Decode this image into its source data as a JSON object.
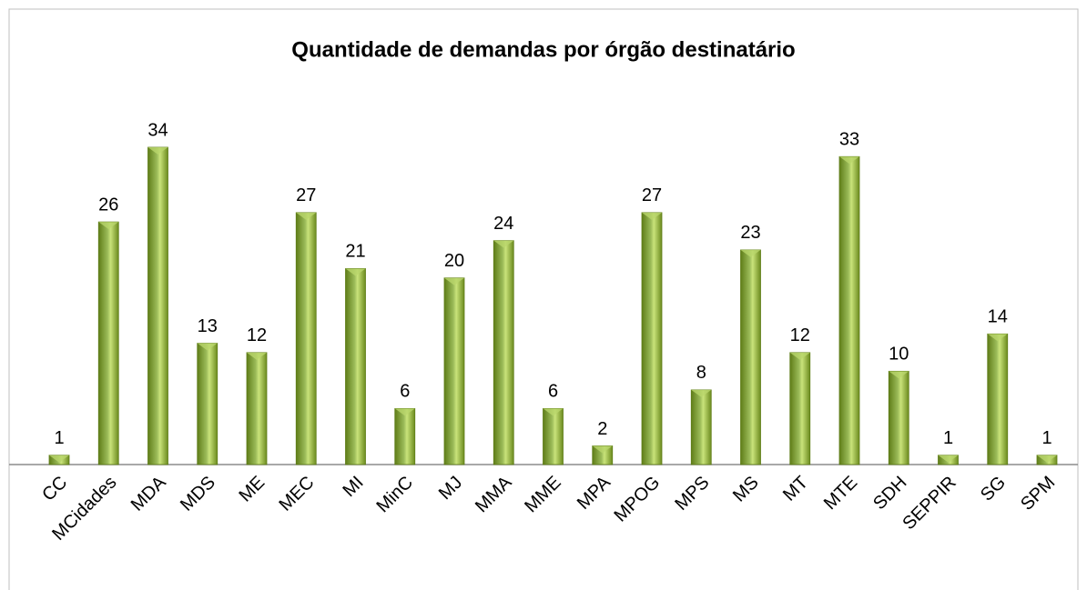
{
  "chart_data": {
    "type": "bar",
    "title": "Quantidade de demandas por órgão destinatário",
    "categories": [
      "CC",
      "MCidades",
      "MDA",
      "MDS",
      "ME",
      "MEC",
      "MI",
      "MinC",
      "MJ",
      "MMA",
      "MME",
      "MPA",
      "MPOG",
      "MPS",
      "MS",
      "MT",
      "MTE",
      "SDH",
      "SEPPIR",
      "SG",
      "SPM"
    ],
    "values": [
      1,
      26,
      34,
      13,
      12,
      27,
      21,
      6,
      20,
      24,
      6,
      2,
      27,
      8,
      23,
      12,
      33,
      10,
      1,
      14,
      1
    ],
    "color": "#9bbb59"
  }
}
